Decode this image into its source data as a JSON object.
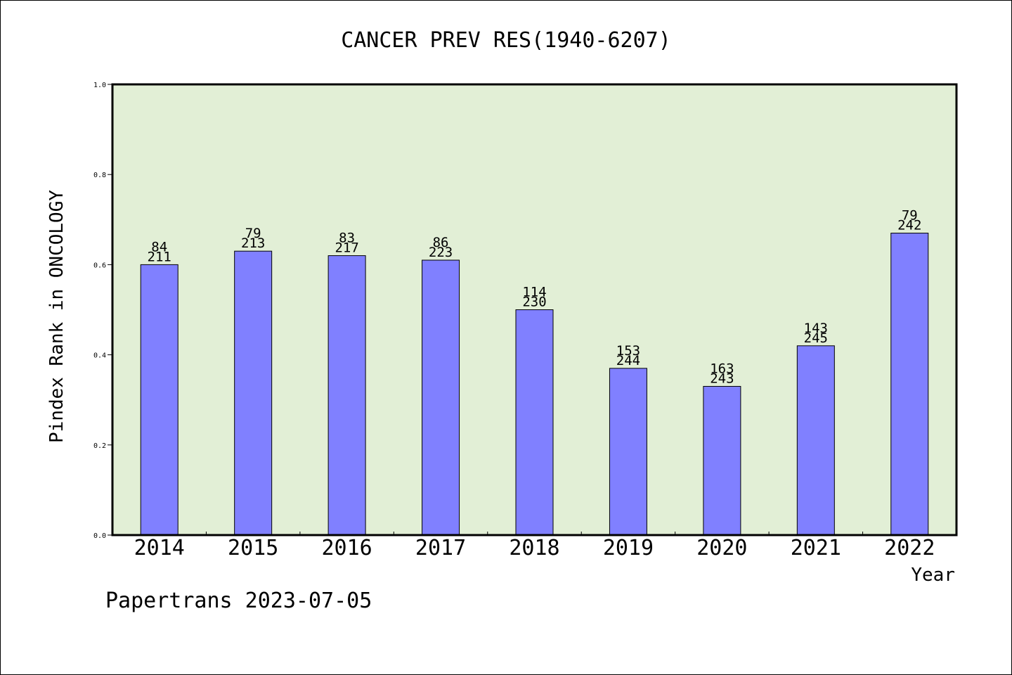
{
  "chart_data": {
    "type": "bar",
    "title": "CANCER PREV RES(1940-6207)",
    "xlabel": "Year",
    "ylabel": "Pindex Rank in ONCOLOGY",
    "ylim": [
      0,
      1.0
    ],
    "yticks": [
      "0.0",
      "0.2",
      "0.4",
      "0.6",
      "0.8",
      "1.0"
    ],
    "ytick_values": [
      0,
      0.2,
      0.4,
      0.6,
      0.8,
      1.0
    ],
    "categories": [
      "2014",
      "2015",
      "2016",
      "2017",
      "2018",
      "2019",
      "2020",
      "2021",
      "2022"
    ],
    "values": [
      0.6,
      0.63,
      0.62,
      0.61,
      0.5,
      0.37,
      0.33,
      0.42,
      0.67
    ],
    "label_top": [
      "84",
      "79",
      "83",
      "86",
      "114",
      "153",
      "163",
      "143",
      "79"
    ],
    "label_bottom": [
      "211",
      "213",
      "217",
      "223",
      "230",
      "244",
      "243",
      "245",
      "242"
    ],
    "grid": false,
    "colors": {
      "bar": "#8080ff",
      "plot_bg": "#e2efd6",
      "axis": "#000000"
    }
  },
  "footer": {
    "caption": "Papertrans 2023-07-05"
  }
}
